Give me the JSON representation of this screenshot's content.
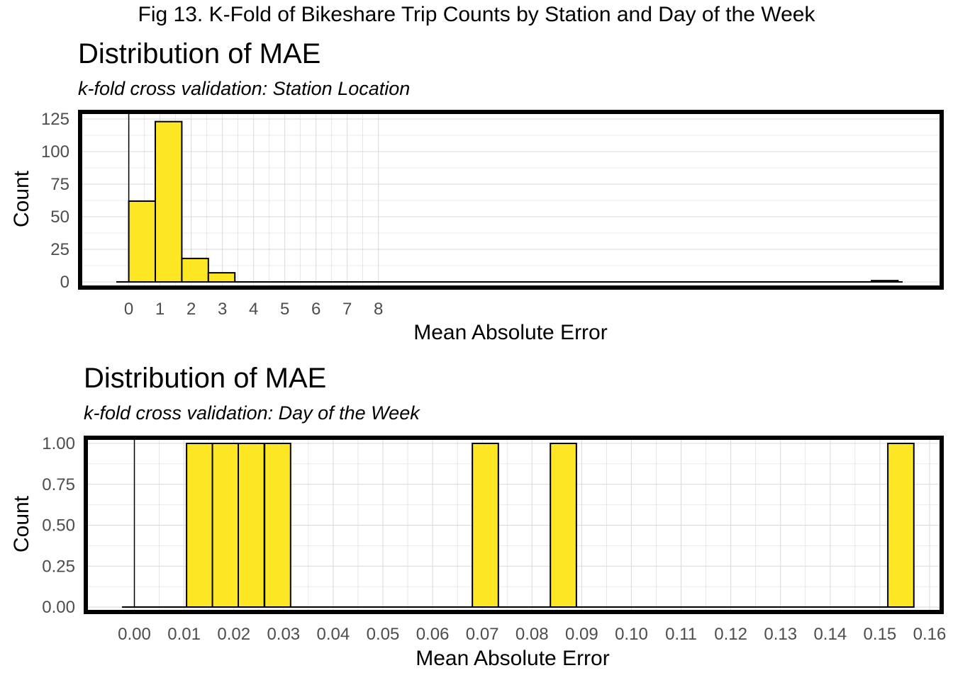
{
  "figure_title": "Fig 13. K-Fold of Bikeshare Trip Counts by Station and Day of the Week",
  "colors": {
    "bar_fill": "#FDE725",
    "bar_stroke": "#000000",
    "grid": "#d9d9d9",
    "frame": "#000000"
  },
  "chart_data": [
    {
      "type": "bar",
      "title": "Distribution of MAE",
      "subtitle": "k-fold cross validation: Station Location",
      "xlabel": "Mean Absolute Error",
      "ylabel": "Count",
      "xlim": [
        -0.4,
        24.8
      ],
      "ylim": [
        0,
        125
      ],
      "xticks": [
        0,
        1,
        2,
        3,
        4,
        5,
        6,
        7,
        8
      ],
      "yticks": [
        0,
        25,
        50,
        75,
        100,
        125
      ],
      "bin_width": 0.85,
      "bins": [
        {
          "x": 0,
          "count": 62
        },
        {
          "x": 0.85,
          "count": 123
        },
        {
          "x": 1.7,
          "count": 18
        },
        {
          "x": 2.55,
          "count": 7
        },
        {
          "x": 3.4,
          "count": 0
        },
        {
          "x": 23.8,
          "count": 1
        }
      ],
      "baseline": [
        -0.4,
        24.8
      ],
      "grid": true
    },
    {
      "type": "bar",
      "title": "Distribution of MAE",
      "subtitle": "k-fold cross validation: Day of the Week",
      "xlabel": "Mean Absolute Error",
      "ylabel": "Count",
      "xlim": [
        -0.0025,
        0.16
      ],
      "ylim": [
        0,
        1
      ],
      "xticks": [
        0.0,
        0.01,
        0.02,
        0.03,
        0.04,
        0.05,
        0.06,
        0.07,
        0.08,
        0.09,
        0.1,
        0.11,
        0.12,
        0.13,
        0.14,
        0.15,
        0.16
      ],
      "xtick_labels": [
        "0.00",
        "0.01",
        "0.02",
        "0.03",
        "0.04",
        "0.05",
        "0.06",
        "0.07",
        "0.08",
        "0.09",
        "0.10",
        "0.11",
        "0.12",
        "0.13",
        "0.14",
        "0.15",
        "0.16"
      ],
      "yticks": [
        0.0,
        0.25,
        0.5,
        0.75,
        1.0
      ],
      "ytick_labels": [
        "0.00",
        "0.25",
        "0.50",
        "0.75",
        "1.00"
      ],
      "bin_width": 0.00523,
      "bins": [
        {
          "x": 0.0105,
          "count": 1
        },
        {
          "x": 0.0157,
          "count": 1
        },
        {
          "x": 0.0209,
          "count": 1
        },
        {
          "x": 0.0262,
          "count": 1
        },
        {
          "x": 0.068,
          "count": 1
        },
        {
          "x": 0.0837,
          "count": 1
        },
        {
          "x": 0.1516,
          "count": 1
        }
      ],
      "baseline": [
        -0.0025,
        0.154
      ],
      "grid": true
    }
  ]
}
